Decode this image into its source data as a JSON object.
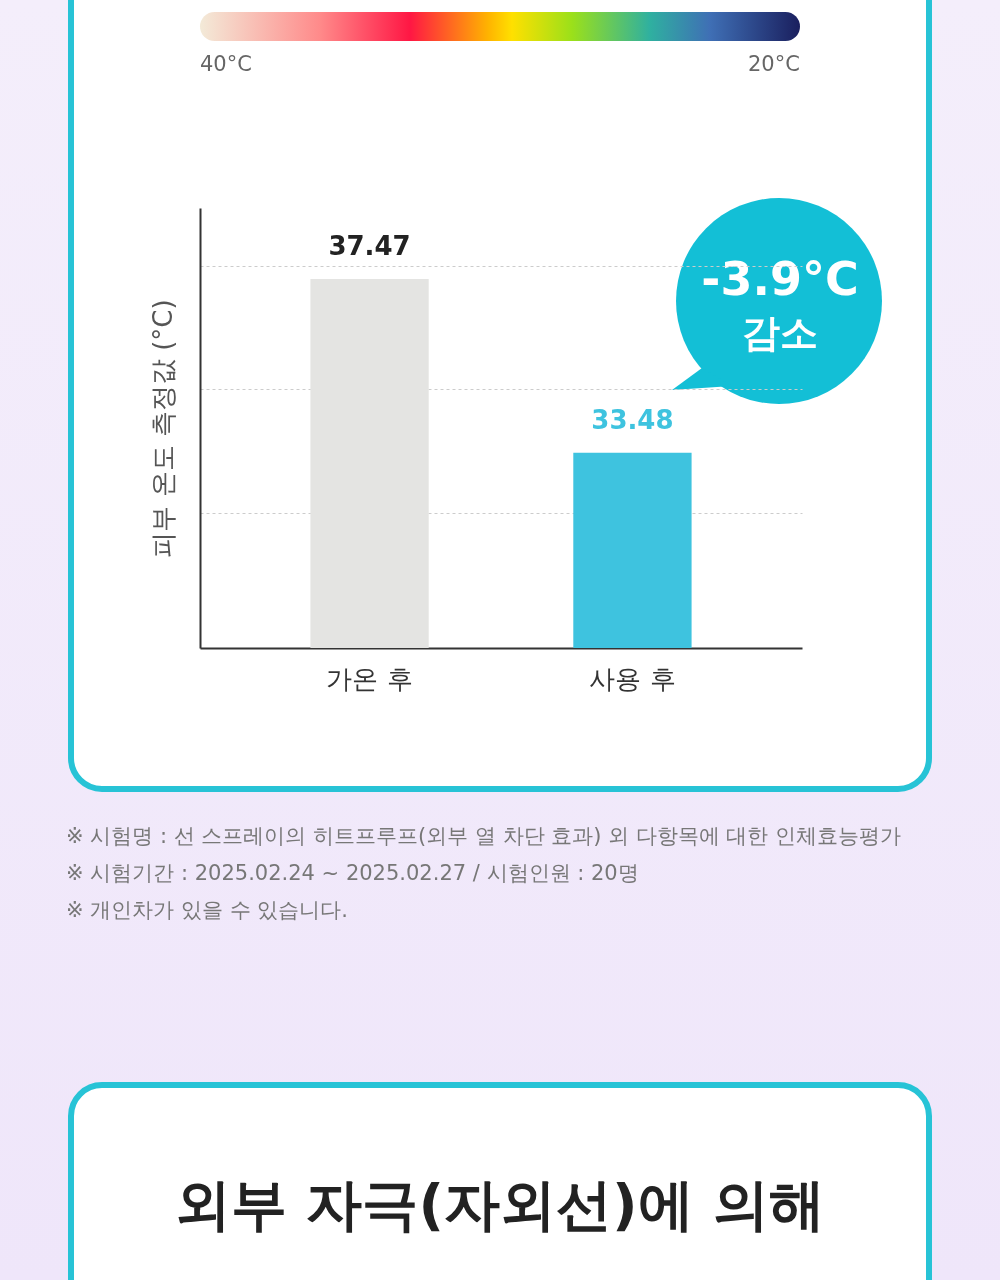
{
  "chart_data": {
    "type": "bar",
    "ylabel": "피부 온도 측정값 (°C)",
    "categories": [
      "가온 후",
      "사용 후"
    ],
    "values": [
      37.47,
      33.48
    ],
    "colors": [
      "#e4e4e2",
      "#3ec3df"
    ],
    "data_labels": true,
    "ylim": [
      29,
      39.1
    ],
    "yticks": [
      {
        "value": 32.1,
        "label": null
      },
      {
        "value": 34.95,
        "label": null
      },
      {
        "value": 37.76,
        "label": null
      }
    ],
    "grid": "y",
    "tick_labels": "x",
    "annotations": [
      "40°C",
      "20°C",
      "-3.9°C 감소",
      "※ 시험명 : 선 스프레이의 히트프루프(외부 열 차단 효과) 외 다항목에 대한 인체효능평가",
      "※ 시험기간 : 2025.02.24 ~ 2025.02.27 / 시험인원 : 20명",
      "※ 개인차가 있을 수 있습니다.",
      "외부 자극(자외선)에 의해"
    ]
  }
}
